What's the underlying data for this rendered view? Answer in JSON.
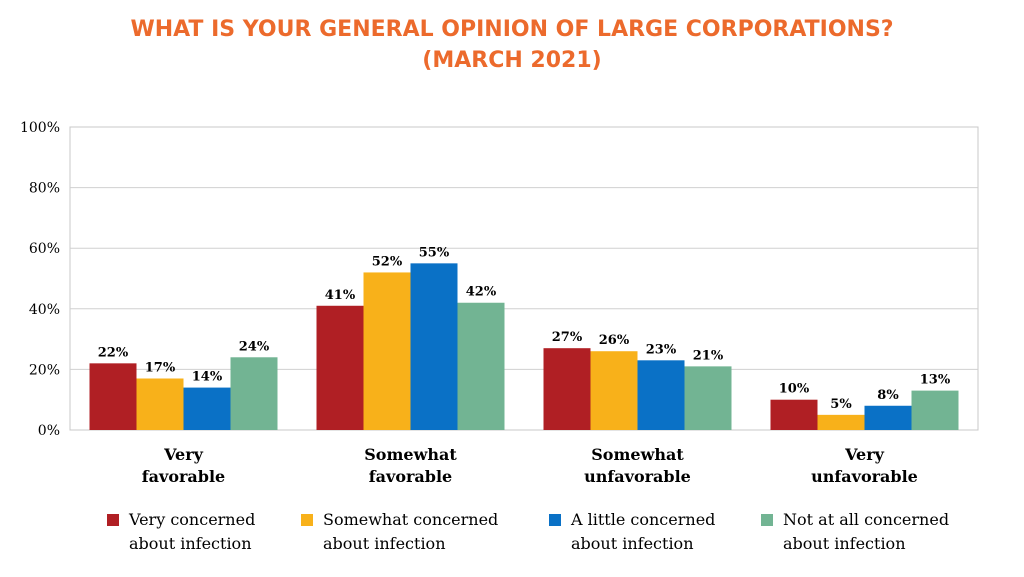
{
  "title_lines": [
    "WHAT IS YOUR GENERAL OPINION OF LARGE CORPORATIONS?",
    "(MARCH 2021)"
  ],
  "colors": {
    "title": "#ec6a2c",
    "series": [
      "#b01f24",
      "#f8b11a",
      "#0a71c6",
      "#72b493"
    ]
  },
  "chart_data": {
    "type": "bar",
    "title": "WHAT IS YOUR GENERAL OPINION OF LARGE CORPORATIONS? (MARCH 2021)",
    "xlabel": "",
    "ylabel": "",
    "ylim": [
      0,
      100
    ],
    "yticks": [
      "0%",
      "20%",
      "40%",
      "60%",
      "80%",
      "100%"
    ],
    "grid": true,
    "legend_position": "bottom",
    "categories": [
      [
        "Very",
        "favorable"
      ],
      [
        "Somewhat",
        "favorable"
      ],
      [
        "Somewhat",
        "unfavorable"
      ],
      [
        "Very",
        "unfavorable"
      ]
    ],
    "series": [
      {
        "name": [
          "Very concerned",
          "about infection"
        ],
        "values": [
          22,
          41,
          27,
          10
        ],
        "labels": [
          "22%",
          "41%",
          "27%",
          "10%"
        ]
      },
      {
        "name": [
          "Somewhat concerned",
          "about infection"
        ],
        "values": [
          17,
          52,
          26,
          5
        ],
        "labels": [
          "17%",
          "52%",
          "26%",
          "5%"
        ]
      },
      {
        "name": [
          "A little concerned",
          "about infection"
        ],
        "values": [
          14,
          55,
          23,
          8
        ],
        "labels": [
          "14%",
          "55%",
          "23%",
          "8%"
        ]
      },
      {
        "name": [
          "Not at all concerned",
          "about infection"
        ],
        "values": [
          24,
          42,
          21,
          13
        ],
        "labels": [
          "24%",
          "42%",
          "21%",
          "13%"
        ]
      }
    ]
  }
}
